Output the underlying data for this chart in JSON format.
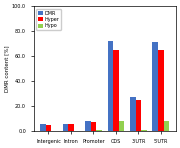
{
  "categories": [
    "Intergenic",
    "Intron",
    "Promoter",
    "CDS",
    "3'UTR",
    "5'UTR"
  ],
  "series": {
    "DMR": [
      5.5,
      6.0,
      8.0,
      72.0,
      27.0,
      71.0
    ],
    "Hyper": [
      5.0,
      5.5,
      7.5,
      65.0,
      25.0,
      65.0
    ],
    "Hypo": [
      0.5,
      0.5,
      0.8,
      8.0,
      0.8,
      8.5
    ]
  },
  "colors": {
    "DMR": "#4472C4",
    "Hyper": "#FF0000",
    "Hypo": "#92D050"
  },
  "ylabel": "DMR content [%]",
  "ylim": [
    0,
    100
  ],
  "yticks": [
    0,
    20.0,
    40.0,
    60.0,
    80.0,
    100.0
  ],
  "ytick_labels": [
    "0.0",
    "20.0",
    "40.0",
    "60.0",
    "80.0",
    "100.0"
  ],
  "legend_loc": "upper left",
  "bar_width": 0.25,
  "background_color": "#ffffff"
}
